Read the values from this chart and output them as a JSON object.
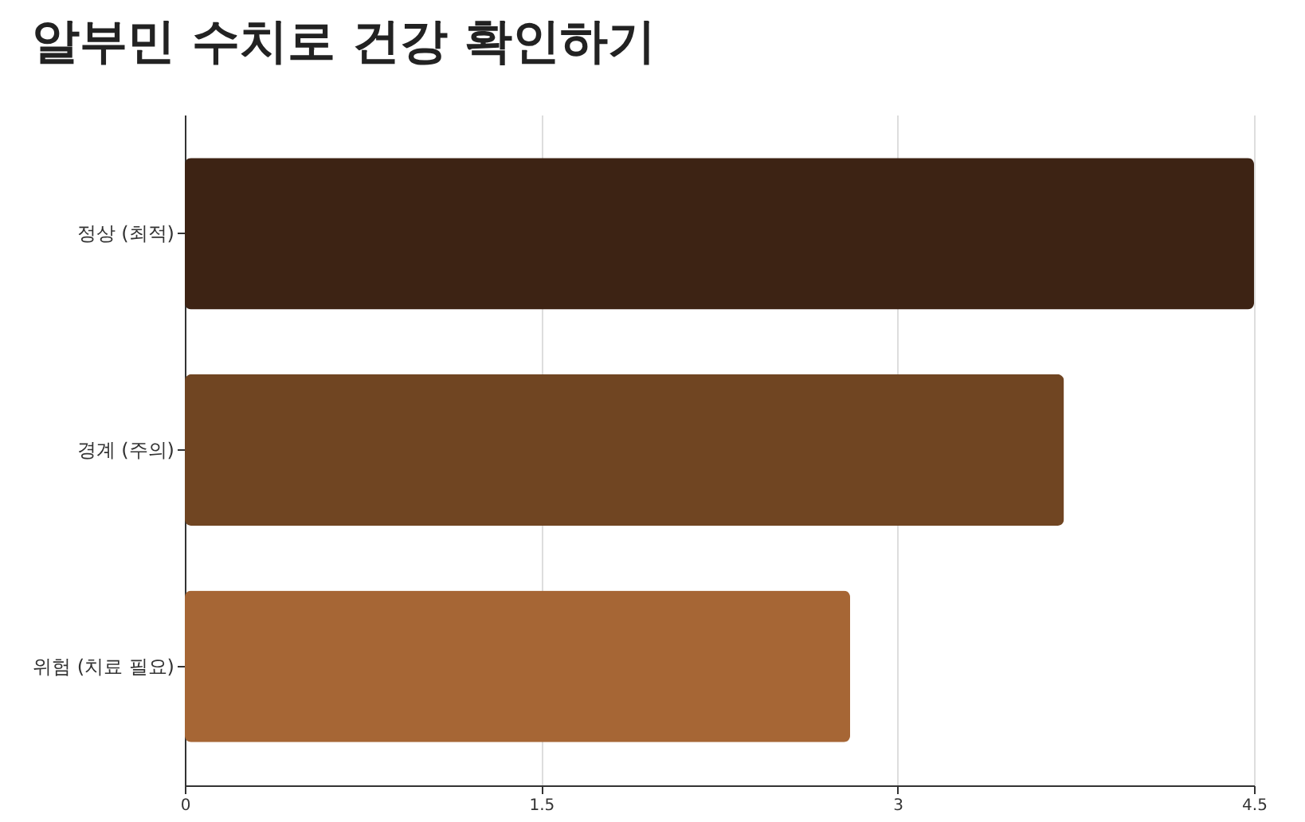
{
  "chart_data": {
    "type": "bar",
    "orientation": "horizontal",
    "title": "알부민 수치로 건강 확인하기",
    "categories": [
      "정상 (최적)",
      "경계 (주의)",
      "위험 (치료 필요)"
    ],
    "values": [
      4.5,
      3.7,
      2.8
    ],
    "colors": [
      "#3d2314",
      "#704522",
      "#a66635"
    ],
    "xlim": [
      0,
      4.5
    ],
    "xticks": [
      0,
      1.5,
      3,
      4.5
    ],
    "grid": "x"
  }
}
